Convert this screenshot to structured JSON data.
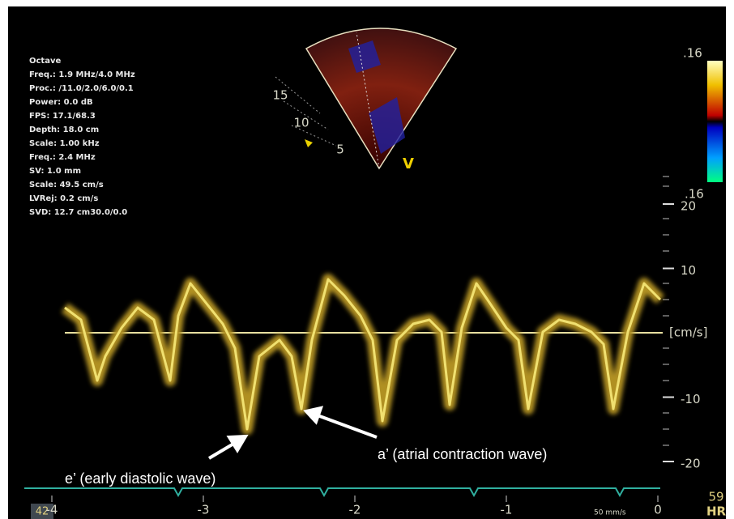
{
  "info_panel": {
    "lines": [
      "Octave",
      "Freq.: 1.9 MHz/4.0 MHz",
      "Proc.: /11.0/2.0/6.0/0.1",
      "Power: 0.0 dB",
      "FPS: 17.1/68.3",
      "Depth: 18.0 cm",
      "Scale: 1.00 kHz",
      "Freq.: 2.4 MHz",
      "SV: 1.0 mm",
      "Scale: 49.5 cm/s",
      "LVRej: 0.2 cm/s",
      "SVD: 12.7 cm30.0/0.0"
    ]
  },
  "sector": {
    "depth_labels": [
      "15",
      "10",
      "5"
    ],
    "label": "V"
  },
  "color_scale": {
    "top_label": ".16",
    "bottom_label": ".16"
  },
  "velocity_scale": {
    "ticks": [
      20,
      10,
      -10,
      -20
    ],
    "unit": "[cm/s]"
  },
  "time_scale": {
    "ticks": [
      -4,
      -3,
      -2,
      -1,
      0
    ],
    "speed": "50 mm/s"
  },
  "annotations": {
    "e_wave": "e’ (early diastolic wave)",
    "a_wave": "a’ (atrial contraction wave)"
  },
  "status": {
    "left": "42",
    "heart_rate": "59",
    "hr_label": "HR"
  }
}
